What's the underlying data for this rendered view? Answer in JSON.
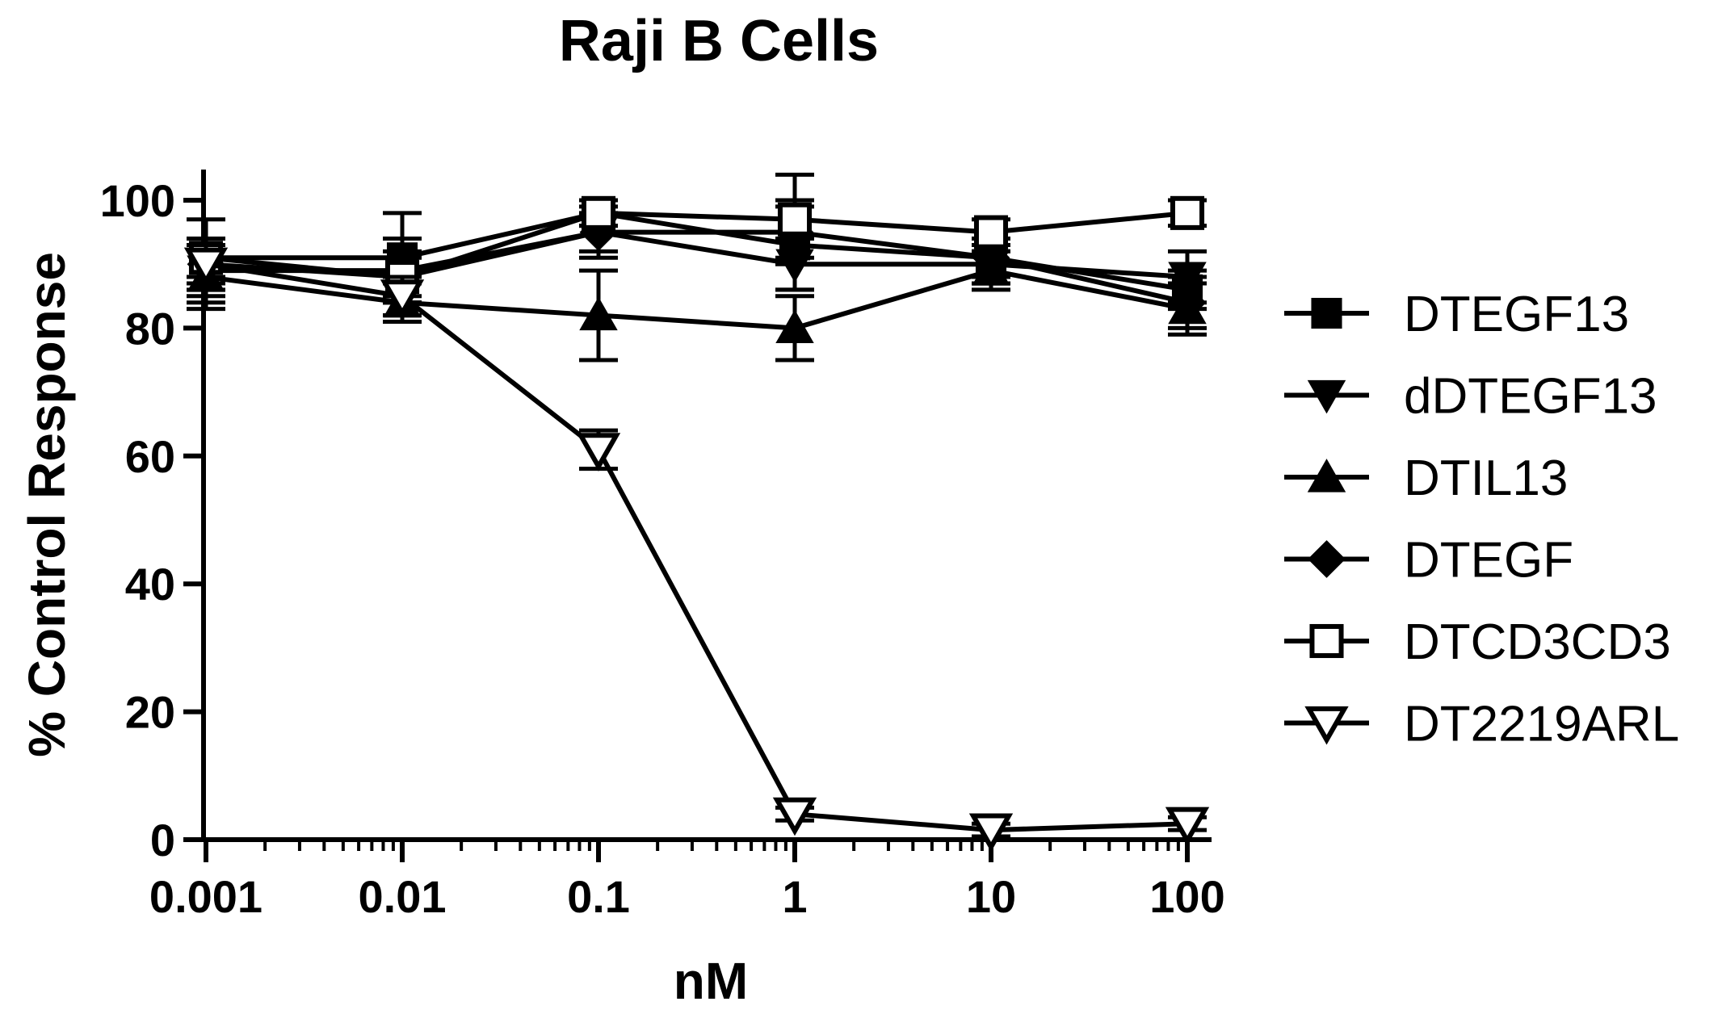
{
  "chart_data": {
    "type": "line",
    "title": "Raji B Cells",
    "xlabel": "nM",
    "ylabel": "% Control Response",
    "xscale": "log",
    "xlim": [
      0.001,
      100
    ],
    "ylim": [
      0,
      100
    ],
    "x": [
      0.001,
      0.01,
      0.1,
      1,
      10,
      100
    ],
    "x_tick_labels": [
      "0.001",
      "0.01",
      "0.1",
      "1",
      "10",
      "100"
    ],
    "y_ticks": [
      0,
      20,
      40,
      60,
      80,
      100
    ],
    "y_tick_labels": [
      "0",
      "20",
      "40",
      "60",
      "80",
      "100"
    ],
    "legend_position": "right",
    "series": [
      {
        "name": "DTEGF13",
        "marker": "square-filled",
        "values": [
          91,
          91,
          98,
          93,
          91,
          86
        ],
        "errors": [
          6,
          7,
          2,
          7,
          3,
          3
        ]
      },
      {
        "name": "dDTEGF13",
        "marker": "triangle-down-filled",
        "values": [
          89,
          89,
          95,
          90,
          90,
          88
        ],
        "errors": [
          5,
          5,
          4,
          4,
          3,
          4
        ]
      },
      {
        "name": "DTIL13",
        "marker": "triangle-up-filled",
        "values": [
          88,
          84,
          82,
          80,
          89,
          83
        ],
        "errors": [
          5,
          3,
          7,
          5,
          3,
          4
        ]
      },
      {
        "name": "DTEGF",
        "marker": "diamond-filled",
        "values": [
          90,
          88,
          95,
          95,
          91,
          84
        ],
        "errors": [
          4,
          4,
          3,
          4,
          3,
          4
        ]
      },
      {
        "name": "DTCD3CD3",
        "marker": "square-open",
        "values": [
          91,
          88,
          98,
          97,
          95,
          98
        ],
        "errors": [
          3,
          3,
          2,
          7,
          2,
          2
        ]
      },
      {
        "name": "DT2219ARL",
        "marker": "triangle-down-open",
        "values": [
          90,
          85,
          61,
          4,
          1.5,
          2.5
        ],
        "errors": [
          3,
          3,
          3,
          1,
          1,
          1
        ]
      }
    ]
  }
}
